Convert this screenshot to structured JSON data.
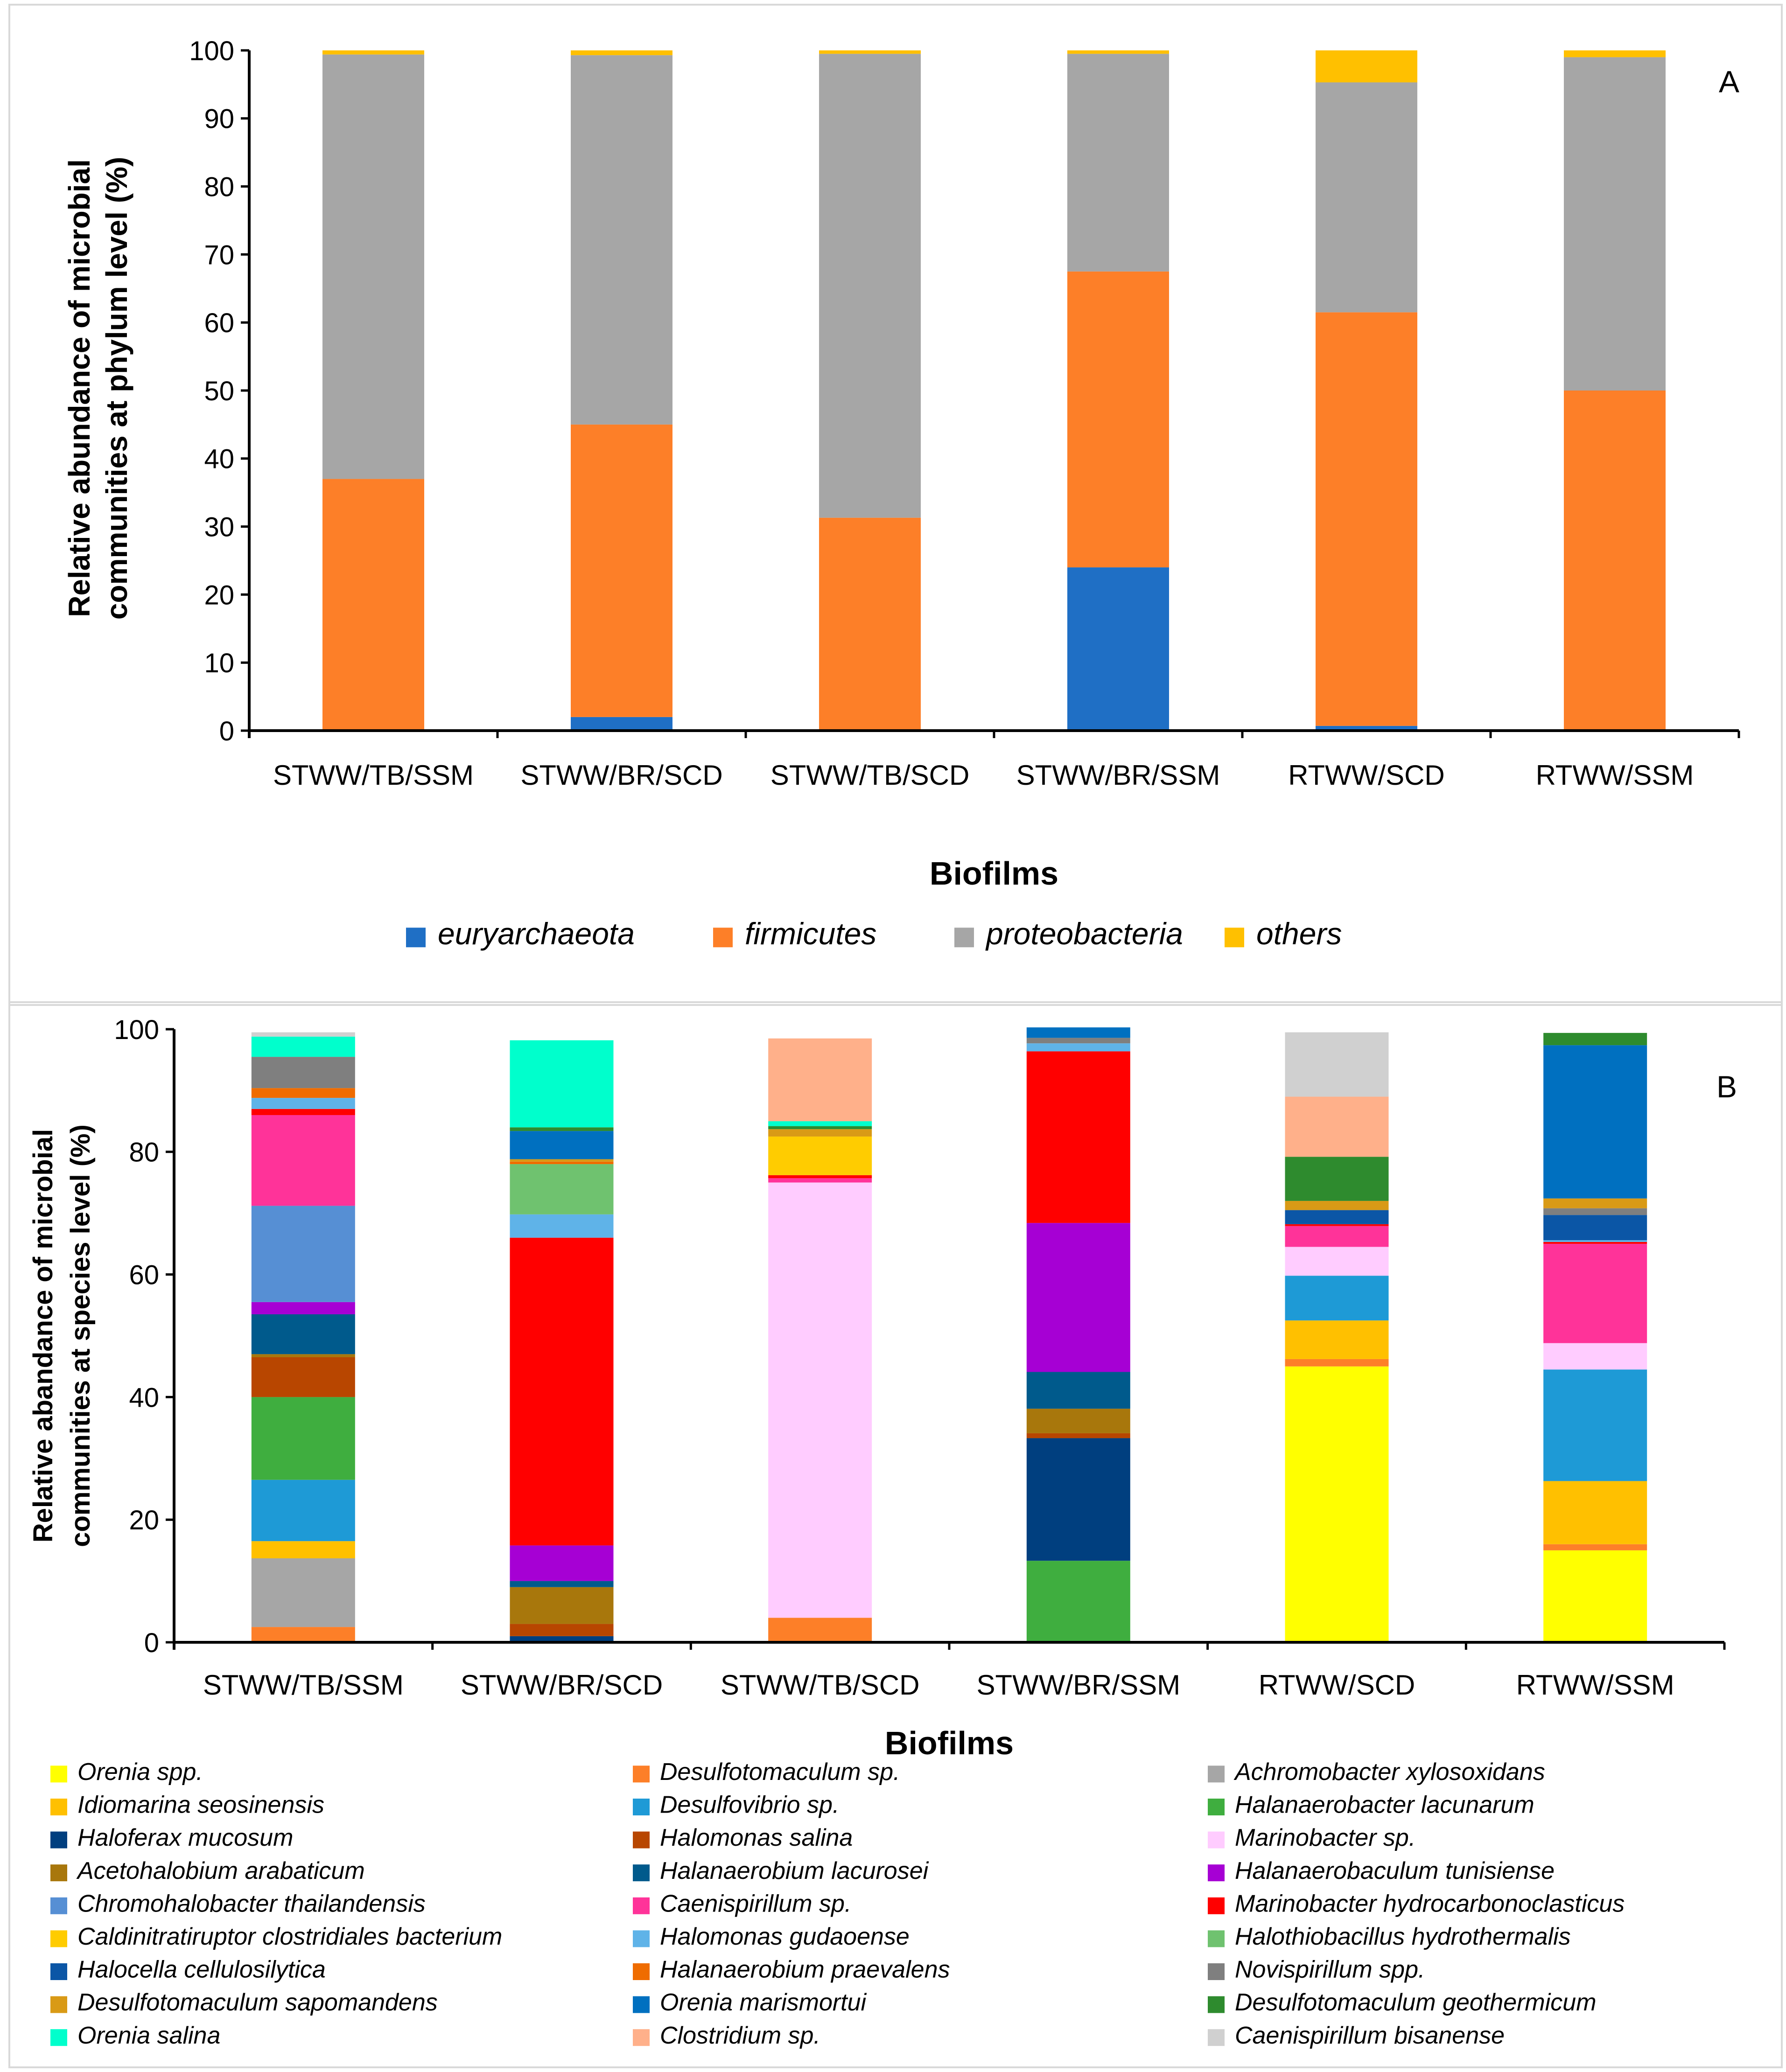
{
  "chart_data": [
    {
      "type": "bar",
      "stacked": true,
      "panel_label": "A",
      "xlabel": "Biofilms",
      "ylabel_lines": [
        "Relative abundance of microbial",
        "communities at phylum level (%)"
      ],
      "ylim": [
        0,
        100
      ],
      "yticks": [
        0,
        10,
        20,
        30,
        40,
        50,
        60,
        70,
        80,
        90,
        100
      ],
      "categories": [
        "STWW/TB/SSM",
        "STWW/BR/SCD",
        "STWW/TB/SCD",
        "STWW/BR/SSM",
        "RTWW/SCD",
        "RTWW/SSM"
      ],
      "legend_position": "bottom",
      "series": [
        {
          "name": "euryarchaeota",
          "color": "#1f6fc5",
          "values": [
            0,
            2,
            0,
            24,
            0.7,
            0
          ]
        },
        {
          "name": "firmicutes",
          "color": "#fd7f28",
          "values": [
            37,
            43,
            31.3,
            43.5,
            60.8,
            50
          ]
        },
        {
          "name": "proteobacteria",
          "color": "#a6a6a6",
          "values": [
            62.4,
            54.3,
            68.2,
            32,
            33.8,
            49
          ]
        },
        {
          "name": "others",
          "color": "#ffc000",
          "values": [
            0.6,
            0.7,
            0.5,
            0.5,
            4.7,
            1
          ]
        }
      ]
    },
    {
      "type": "bar",
      "stacked": true,
      "panel_label": "B",
      "xlabel": "Biofilms",
      "ylabel_lines": [
        "Relative abandance of microbial",
        "communities at species level (%)"
      ],
      "ylim": [
        0,
        100
      ],
      "yticks": [
        0,
        20,
        40,
        60,
        80,
        100
      ],
      "categories": [
        "STWW/TB/SSM",
        "STWW/BR/SCD",
        "STWW/TB/SCD",
        "STWW/BR/SSM",
        "RTWW/SCD",
        "RTWW/SSM"
      ],
      "legend_position": "bottom",
      "series": [
        {
          "name": "Orenia spp.",
          "color": "#ffff00",
          "values": [
            0,
            0,
            0,
            0,
            45,
            15
          ]
        },
        {
          "name": "Desulfotomaculum sp.",
          "color": "#fd7f28",
          "values": [
            2.5,
            0,
            4,
            0,
            1.2,
            1
          ]
        },
        {
          "name": "Achromobacter xylosoxidans",
          "color": "#a6a6a6",
          "values": [
            11.2,
            0,
            0,
            0,
            0,
            0
          ]
        },
        {
          "name": "Idiomarina seosinensis",
          "color": "#ffc000",
          "values": [
            2.8,
            0,
            0,
            0,
            6.3,
            10.3
          ]
        },
        {
          "name": "Desulfovibrio sp.",
          "color": "#1e9ad6",
          "values": [
            10,
            0,
            0,
            0,
            7.3,
            18.2
          ]
        },
        {
          "name": "Halanaerobacter lacunarum",
          "color": "#3fae3f",
          "values": [
            13.5,
            0,
            0,
            13.3,
            0,
            0
          ]
        },
        {
          "name": "Haloferax mucosum",
          "color": "#003f7f",
          "values": [
            0,
            1,
            0,
            20,
            0,
            0
          ]
        },
        {
          "name": "Halomonas salina",
          "color": "#b84600",
          "values": [
            6.5,
            2,
            0,
            0.8,
            0,
            0
          ]
        },
        {
          "name": "Marinobacter sp.",
          "color": "#ffccff",
          "values": [
            0,
            0,
            71,
            0,
            4.7,
            4.3
          ]
        },
        {
          "name": "Acetohalobium arabaticum",
          "color": "#a8770c",
          "values": [
            0.5,
            6,
            0,
            4,
            0,
            0
          ]
        },
        {
          "name": "Halanaerobium lacurosei",
          "color": "#005a8c",
          "values": [
            6.5,
            1,
            0,
            6,
            0,
            0
          ]
        },
        {
          "name": "Halanaerobaculum tunisiense",
          "color": "#a600d4",
          "values": [
            2,
            5.8,
            0,
            24.3,
            0,
            0
          ]
        },
        {
          "name": "Chromohalobacter thailandensis",
          "color": "#568fd4",
          "values": [
            15.7,
            0,
            0,
            0,
            0,
            0
          ]
        },
        {
          "name": "Caenispirillum sp.",
          "color": "#ff3399",
          "values": [
            14.8,
            0,
            0.7,
            0,
            3.4,
            16.2
          ]
        },
        {
          "name": "Marinobacter hydrocarbonoclasticus",
          "color": "#ff0000",
          "values": [
            1,
            50.2,
            0.5,
            28,
            0.3,
            0.3
          ]
        },
        {
          "name": "Caldinitratiruptor clostridiales bacterium",
          "color": "#ffcc00",
          "values": [
            0,
            0,
            6.3,
            0,
            0,
            0
          ]
        },
        {
          "name": "Halomonas gudaoense",
          "color": "#5fb3e8",
          "values": [
            1.8,
            3.8,
            0,
            1.3,
            0,
            0.3
          ]
        },
        {
          "name": "Halothiobacillus hydrothermalis",
          "color": "#6fc26f",
          "values": [
            0,
            8.2,
            0,
            0,
            0,
            0
          ]
        },
        {
          "name": "Halocella cellulosilytica",
          "color": "#0b56a6",
          "values": [
            0,
            0,
            0,
            0,
            2.3,
            4.1
          ]
        },
        {
          "name": "Halanaerobium praevalens",
          "color": "#ef6c00",
          "values": [
            1.6,
            0.4,
            0,
            0,
            0,
            0
          ]
        },
        {
          "name": "Novispirillum spp.",
          "color": "#7f7f7f",
          "values": [
            5.1,
            0,
            0,
            0.9,
            0,
            1.1
          ]
        },
        {
          "name": "Desulfotomaculum sapomandens",
          "color": "#d99a16",
          "values": [
            0,
            0.4,
            1.2,
            0,
            1.5,
            1.6
          ]
        },
        {
          "name": "Orenia marismortui",
          "color": "#0070c0",
          "values": [
            0,
            4.6,
            0,
            1.7,
            0,
            25
          ]
        },
        {
          "name": "Desulfotomaculum geothermicum",
          "color": "#2e8b2e",
          "values": [
            0,
            0.6,
            0.5,
            0,
            7.2,
            2
          ]
        },
        {
          "name": "Orenia salina",
          "color": "#00ffcc",
          "values": [
            3.3,
            14.2,
            0.8,
            0,
            0,
            0
          ]
        },
        {
          "name": "Clostridium sp.",
          "color": "#ffb08a",
          "values": [
            0,
            0,
            13.5,
            0,
            9.8,
            0
          ]
        },
        {
          "name": "Caenispirillum bisanense",
          "color": "#d0d0d0",
          "values": [
            0.7,
            0,
            0,
            0,
            10.5,
            0
          ]
        }
      ]
    }
  ]
}
